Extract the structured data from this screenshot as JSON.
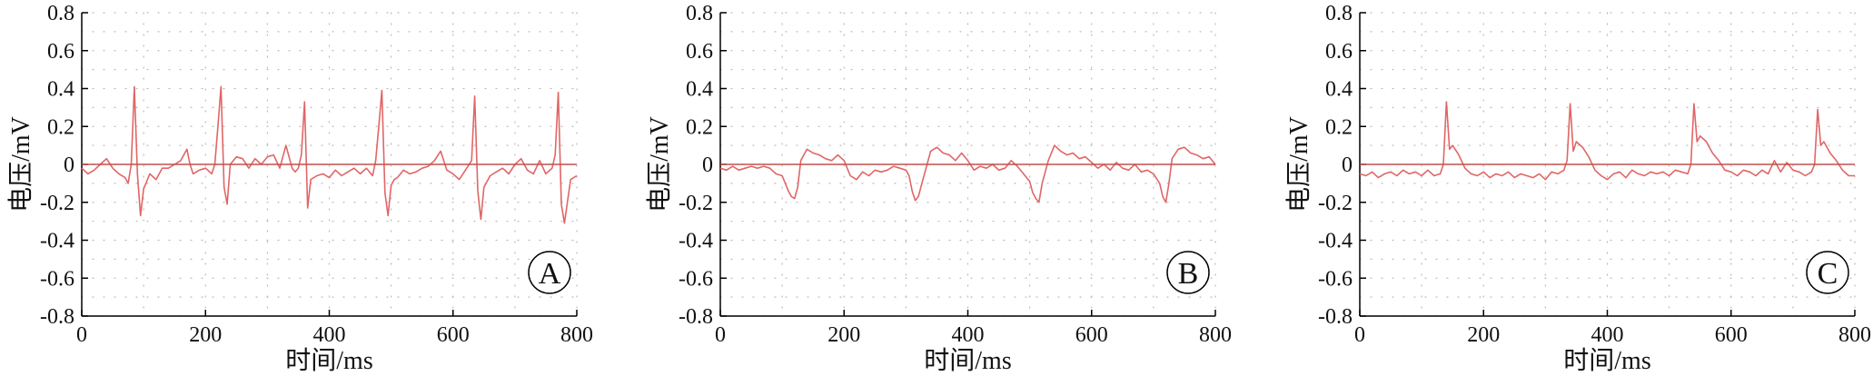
{
  "colors": {
    "signal": "#e06666",
    "baseline": "#c0504d",
    "axis": "#000000",
    "grid": "#bbbbbb"
  },
  "chart_data": [
    {
      "type": "line",
      "panel_label": "A",
      "xlabel": "时间/ms",
      "ylabel": "电压/mV",
      "xlim": [
        0,
        800
      ],
      "ylim": [
        -0.8,
        0.8
      ],
      "xticks": [
        "0",
        "200",
        "400",
        "600",
        "800"
      ],
      "yticks": [
        "0.8",
        "0.6",
        "0.4",
        "0.2",
        "0",
        "-0.2",
        "-0.4",
        "-0.6",
        "-0.8"
      ],
      "grid": "dotted",
      "series": [
        {
          "style": "ecg",
          "x": [
            0,
            10,
            20,
            30,
            40,
            50,
            60,
            70,
            75,
            80,
            85,
            90,
            95,
            100,
            110,
            120,
            130,
            140,
            150,
            160,
            170,
            175,
            180,
            190,
            200,
            210,
            215,
            220,
            225,
            230,
            235,
            240,
            250,
            260,
            270,
            280,
            290,
            300,
            310,
            320,
            330,
            340,
            345,
            350,
            355,
            360,
            365,
            370,
            380,
            390,
            400,
            410,
            420,
            430,
            440,
            450,
            460,
            470,
            475,
            480,
            485,
            490,
            495,
            500,
            505,
            510,
            520,
            530,
            540,
            550,
            560,
            570,
            580,
            590,
            600,
            610,
            620,
            630,
            635,
            640,
            645,
            650,
            660,
            670,
            680,
            690,
            700,
            710,
            720,
            730,
            740,
            750,
            760,
            765,
            770,
            775,
            780,
            790,
            800
          ],
          "y": [
            -0.02,
            -0.05,
            -0.03,
            0.0,
            0.03,
            -0.02,
            -0.05,
            -0.07,
            -0.1,
            0.0,
            0.41,
            -0.05,
            -0.27,
            -0.13,
            -0.05,
            -0.08,
            -0.02,
            -0.02,
            0.0,
            0.02,
            0.08,
            0.0,
            -0.05,
            -0.03,
            -0.02,
            -0.05,
            0.0,
            0.2,
            0.41,
            -0.12,
            -0.21,
            0.0,
            0.04,
            0.03,
            -0.02,
            0.03,
            0.0,
            0.04,
            0.05,
            -0.02,
            0.1,
            -0.02,
            -0.04,
            -0.02,
            0.05,
            0.33,
            -0.23,
            -0.08,
            -0.06,
            -0.05,
            -0.07,
            -0.03,
            -0.06,
            -0.04,
            -0.02,
            -0.05,
            -0.02,
            -0.06,
            0.02,
            0.2,
            0.39,
            -0.15,
            -0.27,
            -0.11,
            -0.08,
            -0.07,
            -0.03,
            -0.05,
            -0.04,
            -0.02,
            -0.01,
            0.02,
            0.07,
            -0.03,
            -0.05,
            -0.08,
            -0.03,
            0.02,
            0.36,
            -0.14,
            -0.29,
            -0.12,
            -0.06,
            -0.04,
            -0.02,
            -0.05,
            0.0,
            0.03,
            -0.03,
            -0.05,
            0.02,
            -0.05,
            -0.02,
            0.05,
            0.38,
            -0.21,
            -0.31,
            -0.08,
            -0.06
          ]
        },
        {
          "style": "baseline",
          "x": [
            0,
            800
          ],
          "y": [
            0,
            0
          ]
        }
      ]
    },
    {
      "type": "line",
      "panel_label": "B",
      "xlabel": "时间/ms",
      "ylabel": "电压/mV",
      "xlim": [
        0,
        800
      ],
      "ylim": [
        -0.8,
        0.8
      ],
      "xticks": [
        "0",
        "200",
        "400",
        "600",
        "800"
      ],
      "yticks": [
        "0.8",
        "0.6",
        "0.4",
        "0.2",
        "0",
        "-0.2",
        "-0.4",
        "-0.6",
        "-0.8"
      ],
      "grid": "dotted",
      "series": [
        {
          "style": "ecg",
          "x": [
            0,
            10,
            20,
            30,
            40,
            50,
            60,
            70,
            80,
            90,
            100,
            110,
            115,
            120,
            125,
            130,
            140,
            150,
            160,
            170,
            180,
            190,
            200,
            210,
            220,
            230,
            240,
            250,
            260,
            270,
            280,
            290,
            300,
            305,
            310,
            315,
            320,
            330,
            340,
            350,
            360,
            370,
            380,
            390,
            400,
            410,
            420,
            430,
            440,
            450,
            460,
            470,
            480,
            490,
            500,
            505,
            510,
            515,
            520,
            530,
            540,
            550,
            560,
            570,
            580,
            590,
            600,
            610,
            620,
            630,
            640,
            650,
            660,
            670,
            680,
            690,
            700,
            710,
            715,
            720,
            725,
            730,
            740,
            750,
            760,
            770,
            780,
            790,
            800
          ],
          "y": [
            -0.02,
            -0.03,
            -0.01,
            -0.03,
            -0.02,
            -0.01,
            -0.02,
            -0.01,
            -0.02,
            -0.05,
            -0.06,
            -0.14,
            -0.17,
            -0.18,
            -0.12,
            0.02,
            0.08,
            0.06,
            0.05,
            0.03,
            0.02,
            0.05,
            0.02,
            -0.06,
            -0.08,
            -0.04,
            -0.06,
            -0.03,
            -0.04,
            -0.03,
            -0.01,
            -0.02,
            -0.03,
            -0.06,
            -0.14,
            -0.19,
            -0.17,
            -0.05,
            0.07,
            0.09,
            0.06,
            0.05,
            0.02,
            0.06,
            0.02,
            -0.03,
            -0.01,
            -0.02,
            0.0,
            -0.03,
            -0.02,
            0.02,
            -0.01,
            -0.05,
            -0.09,
            -0.15,
            -0.18,
            -0.2,
            -0.1,
            0.02,
            0.1,
            0.07,
            0.05,
            0.06,
            0.03,
            0.04,
            0.01,
            -0.02,
            0.0,
            -0.03,
            0.01,
            -0.02,
            -0.03,
            0.0,
            -0.04,
            -0.03,
            -0.05,
            -0.1,
            -0.17,
            -0.2,
            -0.1,
            0.03,
            0.08,
            0.09,
            0.06,
            0.05,
            0.03,
            0.04,
            0.0
          ]
        },
        {
          "style": "baseline",
          "x": [
            0,
            800
          ],
          "y": [
            0,
            0
          ]
        }
      ]
    },
    {
      "type": "line",
      "panel_label": "C",
      "xlabel": "时间/ms",
      "ylabel": "电压/mV",
      "xlim": [
        0,
        800
      ],
      "ylim": [
        -0.8,
        0.8
      ],
      "xticks": [
        "0",
        "200",
        "400",
        "600",
        "800"
      ],
      "yticks": [
        "0.8",
        "0.6",
        "0.4",
        "0.2",
        "0",
        "-0.2",
        "-0.4",
        "-0.6",
        "-0.8"
      ],
      "grid": "dotted",
      "series": [
        {
          "style": "ecg",
          "x": [
            0,
            10,
            20,
            30,
            40,
            50,
            60,
            70,
            80,
            90,
            100,
            110,
            120,
            130,
            135,
            140,
            145,
            150,
            160,
            170,
            180,
            190,
            200,
            210,
            220,
            230,
            240,
            250,
            260,
            270,
            280,
            290,
            300,
            310,
            320,
            330,
            335,
            340,
            345,
            350,
            360,
            370,
            380,
            390,
            400,
            410,
            420,
            430,
            440,
            450,
            460,
            470,
            480,
            490,
            500,
            510,
            520,
            530,
            535,
            540,
            545,
            550,
            560,
            570,
            580,
            590,
            600,
            610,
            620,
            630,
            640,
            650,
            660,
            670,
            680,
            690,
            700,
            710,
            720,
            730,
            735,
            740,
            745,
            750,
            760,
            770,
            780,
            790,
            800
          ],
          "y": [
            -0.05,
            -0.06,
            -0.04,
            -0.07,
            -0.05,
            -0.04,
            -0.06,
            -0.03,
            -0.05,
            -0.04,
            -0.06,
            -0.03,
            -0.06,
            -0.05,
            0.0,
            0.33,
            0.08,
            0.1,
            0.05,
            -0.02,
            -0.05,
            -0.06,
            -0.04,
            -0.07,
            -0.05,
            -0.06,
            -0.04,
            -0.07,
            -0.05,
            -0.06,
            -0.07,
            -0.05,
            -0.08,
            -0.04,
            -0.05,
            -0.03,
            0.02,
            0.32,
            0.07,
            0.12,
            0.09,
            0.04,
            -0.03,
            -0.06,
            -0.08,
            -0.05,
            -0.04,
            -0.07,
            -0.03,
            -0.05,
            -0.06,
            -0.04,
            -0.05,
            -0.04,
            -0.06,
            -0.03,
            -0.04,
            -0.05,
            0.0,
            0.32,
            0.12,
            0.15,
            0.12,
            0.06,
            0.02,
            -0.03,
            -0.04,
            -0.06,
            -0.03,
            -0.04,
            -0.06,
            -0.03,
            -0.05,
            0.02,
            -0.04,
            0.01,
            -0.03,
            -0.04,
            -0.06,
            -0.04,
            0.0,
            0.29,
            0.1,
            0.12,
            0.06,
            0.02,
            -0.03,
            -0.06,
            -0.06
          ]
        },
        {
          "style": "baseline",
          "x": [
            0,
            800
          ],
          "y": [
            0,
            0
          ]
        }
      ]
    }
  ]
}
